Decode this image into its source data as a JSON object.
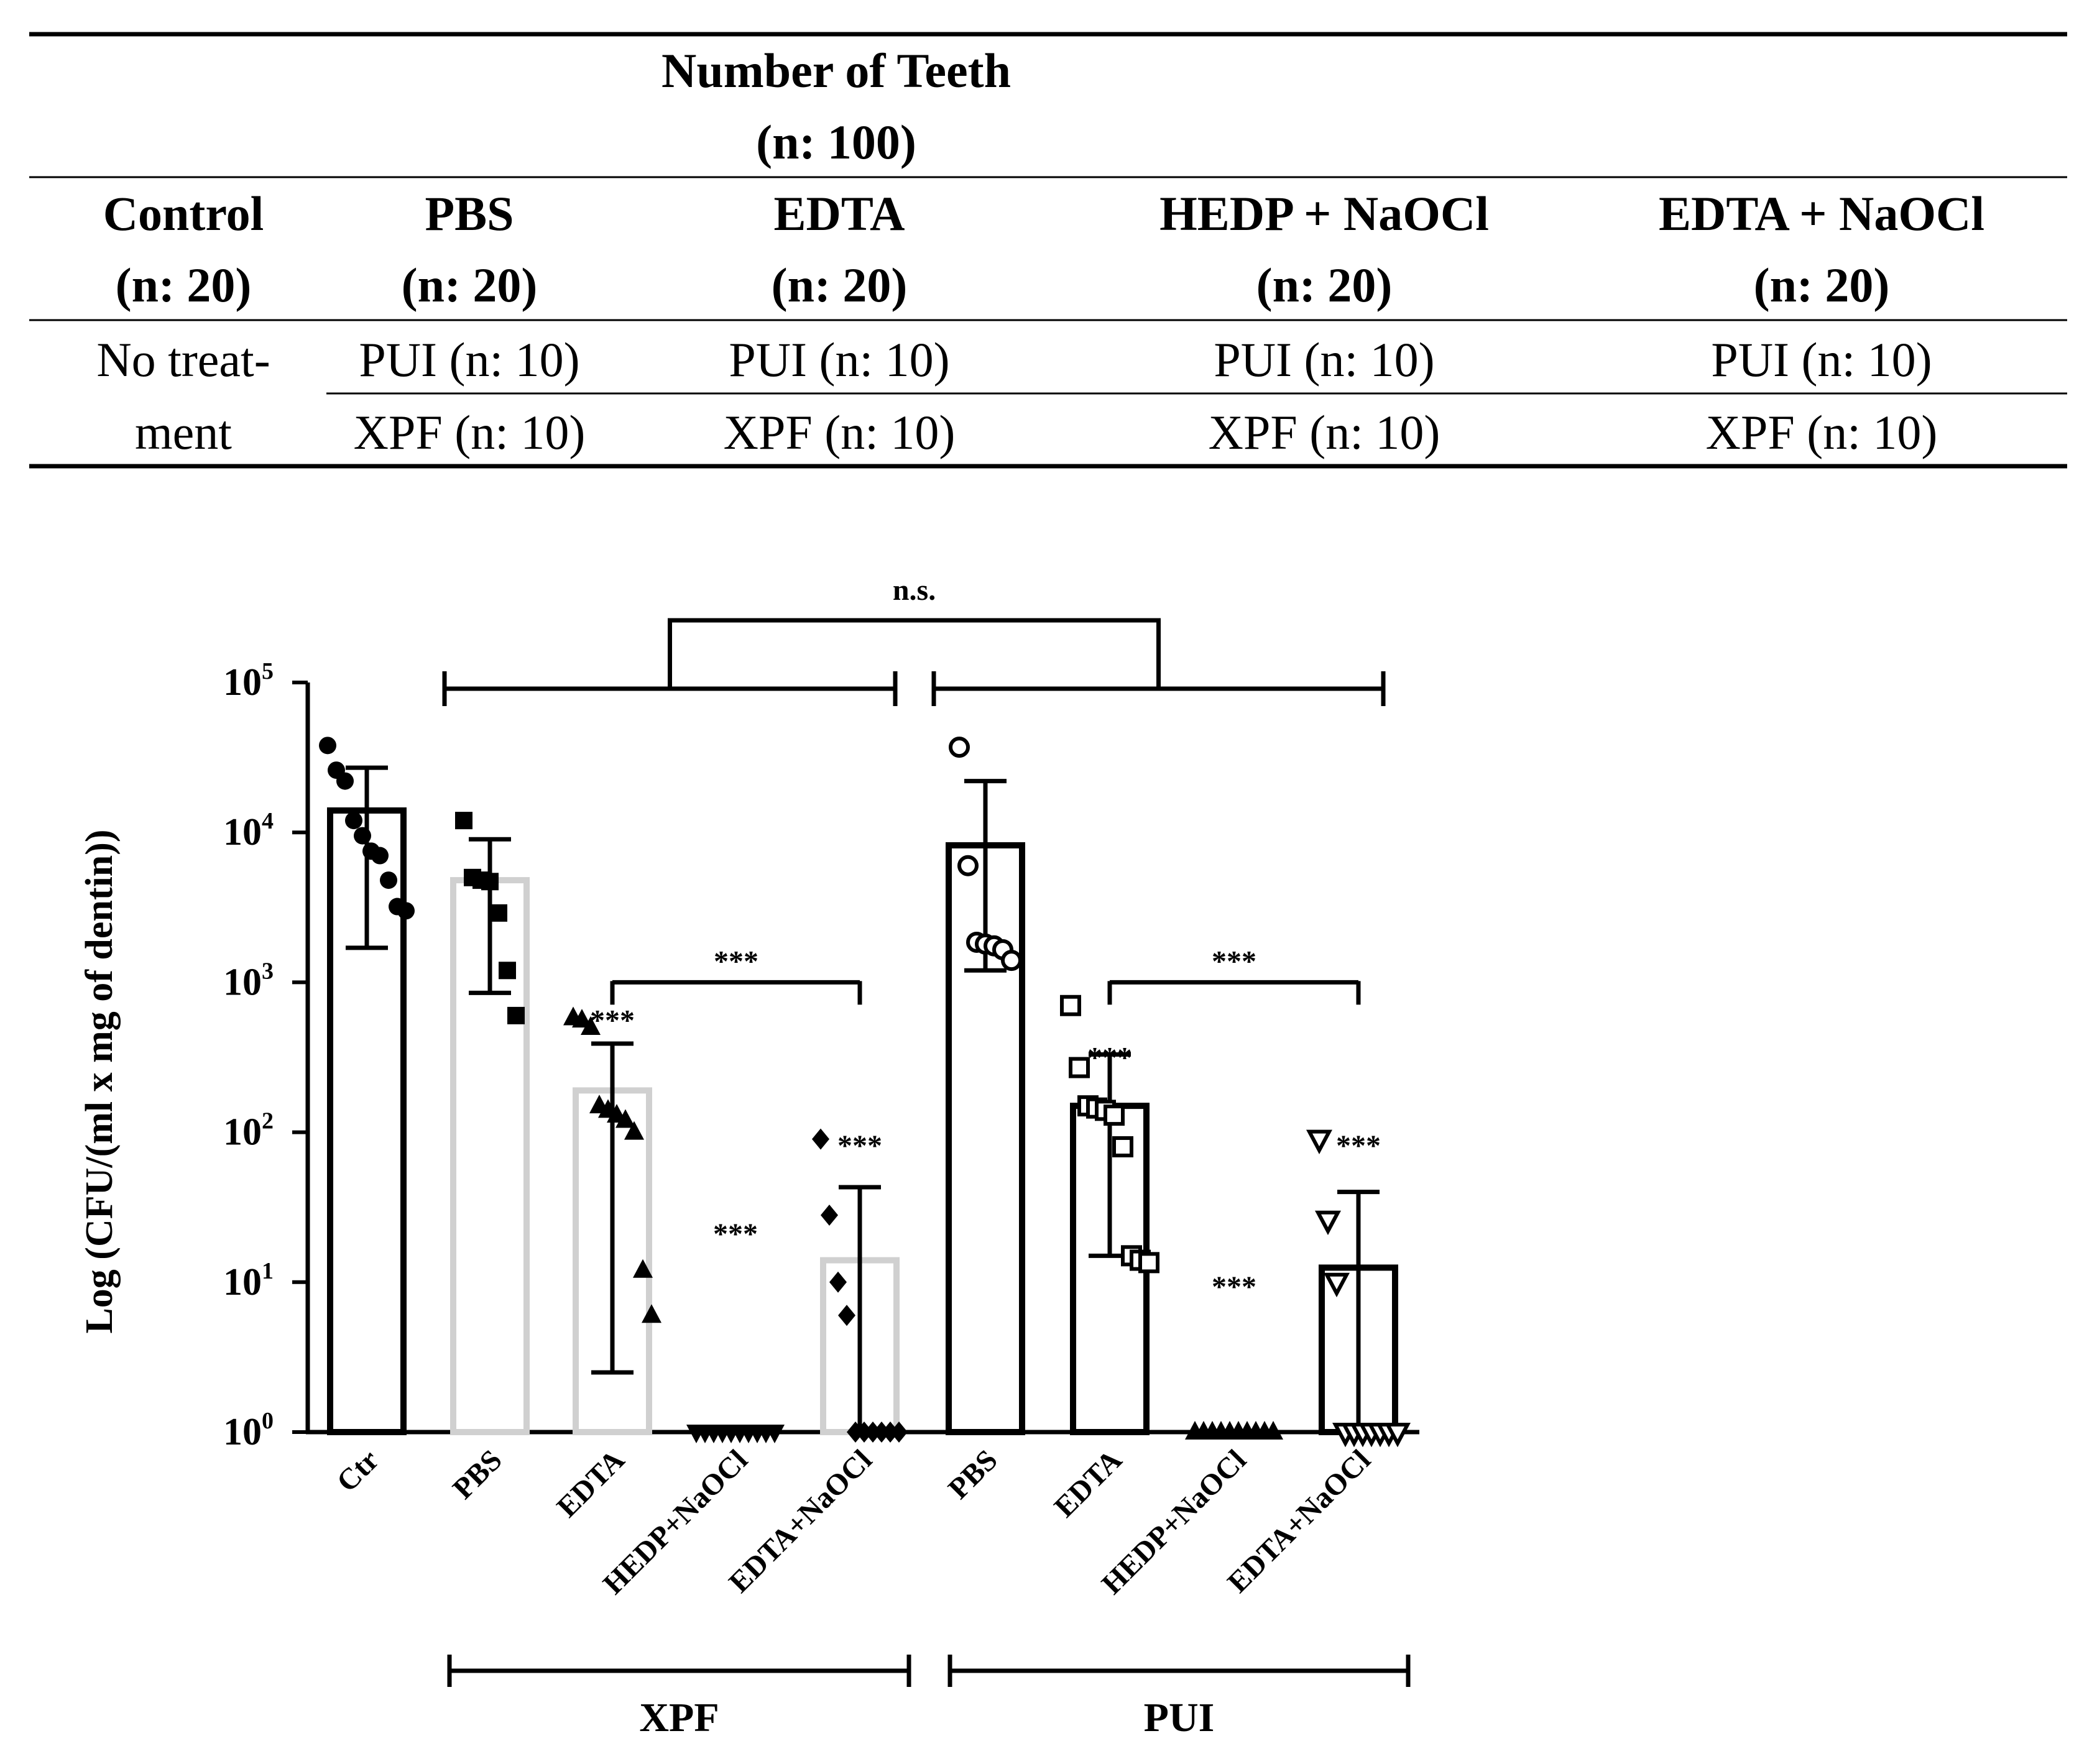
{
  "table": {
    "title_line1": "Number of Teeth",
    "title_line2": "(n: 100)",
    "columns": [
      {
        "name": "Control",
        "n": "(n: 20)"
      },
      {
        "name": "PBS",
        "n": "(n: 20)"
      },
      {
        "name": "EDTA",
        "n": "(n: 20)"
      },
      {
        "name": "HEDP + NaOCl",
        "n": "(n: 20)"
      },
      {
        "name": "EDTA + NaOCl",
        "n": "(n: 20)"
      }
    ],
    "control_cell_line1": "No treat-",
    "control_cell_line2": "ment",
    "row_pui": [
      "PUI (n: 10)",
      "PUI (n: 10)",
      "PUI (n: 10)",
      "PUI (n: 10)"
    ],
    "row_xpf": [
      "XPF (n: 10)",
      "XPF (n: 10)",
      "XPF (n: 10)",
      "XPF (n: 10)"
    ]
  },
  "chart_data": {
    "type": "bar",
    "scale": "log10",
    "ylabel": "Log (CFU/(ml x mg of dentin))",
    "ylim": [
      1,
      100000
    ],
    "yticks": [
      {
        "base": "10",
        "exp": "0",
        "value": 1
      },
      {
        "base": "10",
        "exp": "1",
        "value": 10
      },
      {
        "base": "10",
        "exp": "2",
        "value": 100
      },
      {
        "base": "10",
        "exp": "3",
        "value": 1000
      },
      {
        "base": "10",
        "exp": "4",
        "value": 10000
      },
      {
        "base": "10",
        "exp": "5",
        "value": 100000
      }
    ],
    "categories": [
      "Ctr",
      "PBS",
      "EDTA",
      "HEDP+NaOCl",
      "EDTA+NaOCl",
      "PBS",
      "EDTA",
      "HEDP+NaOCl",
      "EDTA+NaOCl"
    ],
    "groups": [
      {
        "label": "XPF",
        "from": 1,
        "to": 4
      },
      {
        "label": "PUI",
        "from": 5,
        "to": 8
      }
    ],
    "series": [
      {
        "name": "Ctr",
        "mean": 14000,
        "err_low": 1700,
        "err_high": 27000,
        "bar_color": "#000000",
        "marker": "circle-filled",
        "points": [
          38000,
          26000,
          22000,
          12000,
          9500,
          7500,
          7000,
          4800,
          3200,
          3000
        ]
      },
      {
        "name": "XPF PBS",
        "mean": 4800,
        "err_low": 850,
        "err_high": 9000,
        "bar_color": "#d0d0d0",
        "marker": "square-filled",
        "points": [
          12000,
          5000,
          4800,
          4700,
          2900,
          1200,
          600
        ]
      },
      {
        "name": "XPF EDTA",
        "mean": 190,
        "err_low": 2.5,
        "err_high": 390,
        "bar_color": "#d0d0d0",
        "marker": "triangle-filled",
        "points": [
          580,
          560,
          500,
          150,
          140,
          130,
          120,
          100,
          12,
          6
        ]
      },
      {
        "name": "XPF HEDP+NaOCl",
        "mean": 1,
        "err_low": 1,
        "err_high": 1,
        "bar_color": "#d0d0d0",
        "marker": "triangle-down-filled",
        "points": [
          1,
          1,
          1,
          1,
          1,
          1,
          1,
          1,
          1,
          1
        ]
      },
      {
        "name": "XPF EDTA+NaOCl",
        "mean": 14,
        "err_low": 1,
        "err_high": 43,
        "bar_color": "#d0d0d0",
        "marker": "diamond-filled",
        "points": [
          90,
          28,
          10,
          6,
          1,
          1,
          1,
          1,
          1,
          1
        ]
      },
      {
        "name": "PUI PBS",
        "mean": 8200,
        "err_low": 1200,
        "err_high": 22000,
        "bar_color": "#000000",
        "marker": "circle-open",
        "points": [
          37000,
          6000,
          1850,
          1800,
          1750,
          1650,
          1400
        ]
      },
      {
        "name": "PUI EDTA",
        "mean": 150,
        "err_low": 15,
        "err_high": 330,
        "bar_color": "#000000",
        "marker": "square-open",
        "points": [
          700,
          270,
          150,
          145,
          140,
          130,
          80,
          15,
          14,
          13.5
        ]
      },
      {
        "name": "PUI HEDP+NaOCl",
        "mean": 1,
        "err_low": 1,
        "err_high": 1,
        "bar_color": "#000000",
        "marker": "triangle-up-filled",
        "points": [
          1,
          1,
          1,
          1,
          1,
          1,
          1,
          1,
          1,
          1
        ]
      },
      {
        "name": "PUI EDTA+NaOCl",
        "mean": 12.5,
        "err_low": 1,
        "err_high": 40,
        "bar_color": "#000000",
        "marker": "triangle-down-open",
        "points": [
          90,
          26,
          10,
          1,
          1,
          1,
          1,
          1,
          1,
          1
        ]
      }
    ],
    "annotations": {
      "stars": "***",
      "ns": "n.s.",
      "star_marks": [
        {
          "bar": 2,
          "value": 480
        },
        {
          "bar": 3,
          "value": 18
        },
        {
          "bar": 4,
          "value": 70
        },
        {
          "bar": 6,
          "value": 270
        },
        {
          "bar": 7,
          "value": 8
        },
        {
          "bar": 8,
          "value": 70
        }
      ],
      "comparisons": [
        {
          "from": 2,
          "to": 4,
          "value": 1000,
          "label": "***"
        },
        {
          "from": 6,
          "to": 8,
          "value": 1000,
          "label": "***"
        }
      ]
    }
  }
}
